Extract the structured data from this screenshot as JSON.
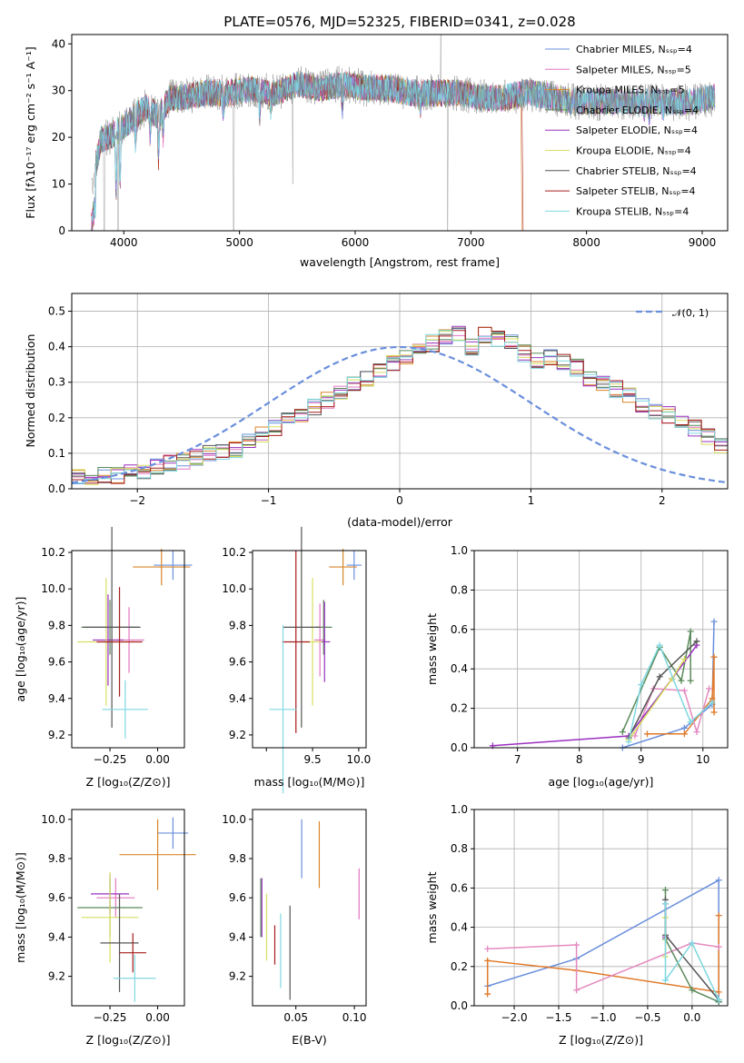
{
  "title": "PLATE=0576, MJD=52325, FIBERID=0341, z=0.028",
  "colors": {
    "Chabrier MILES": "#6a8fdc",
    "Salpeter MILES": "#e377c2",
    "Kroupa MILES": "#d8862a",
    "Chabrier ELODIE": "#5a8a5a",
    "Salpeter ELODIE": "#9b30c0",
    "Kroupa ELODIE": "#d8df60",
    "Chabrier STELIB": "#555555",
    "Salpeter STELIB": "#a61c1c",
    "Kroupa STELIB": "#7fd8e0",
    "orange": "#e07a2a",
    "pink": "#e48ac0",
    "normal": "#6a8fdc"
  },
  "spectrum": {
    "xlabel": "wavelength [Angstrom, rest frame]",
    "ylabel": "Flux [fλ10⁻¹⁷ erg cm⁻² s⁻¹ A⁻¹]",
    "xticks": [
      "4000",
      "5000",
      "6000",
      "7000",
      "8000",
      "9000"
    ],
    "yticks": [
      "0",
      "10",
      "20",
      "30",
      "40"
    ],
    "legend": [
      {
        "label": "Chabrier MILES, Nₛₛₚ=4",
        "key": "Chabrier MILES"
      },
      {
        "label": "Salpeter MILES, Nₛₛₚ=5",
        "key": "Salpeter MILES"
      },
      {
        "label": "Kroupa MILES, Nₛₛₚ=5",
        "key": "Kroupa MILES"
      },
      {
        "label": "Chabrier ELODIE, Nₛₛₚ=4",
        "key": "Chabrier ELODIE"
      },
      {
        "label": "Salpeter ELODIE, Nₛₛₚ=4",
        "key": "Salpeter ELODIE"
      },
      {
        "label": "Kroupa ELODIE, Nₛₛₚ=4",
        "key": "Kroupa ELODIE"
      },
      {
        "label": "Chabrier STELIB, Nₛₛₚ=4",
        "key": "Chabrier STELIB"
      },
      {
        "label": "Salpeter STELIB, Nₛₛₚ=4",
        "key": "Salpeter STELIB"
      },
      {
        "label": "Kroupa STELIB, Nₛₛₚ=4",
        "key": "Kroupa STELIB"
      }
    ]
  },
  "residuals": {
    "xlabel": "(data-model)/error",
    "ylabel": "Normed distribution",
    "legend": "𝒩(0, 1)",
    "xticks": [
      "−2",
      "−1",
      "0",
      "1",
      "2"
    ],
    "yticks": [
      "0.0",
      "0.1",
      "0.2",
      "0.3",
      "0.4",
      "0.5"
    ]
  },
  "p_age_Z": {
    "xlabel": "Z [log₁₀(Z/Z⊙)]",
    "ylabel": "age  [log₁₀(age/yr)]",
    "xticks": [
      "−0.25",
      "0.00"
    ],
    "yticks": [
      "9.2",
      "9.4",
      "9.6",
      "9.8",
      "10.0",
      "10.2"
    ]
  },
  "p_age_mass": {
    "xlabel": "mass [log₁₀(M/M⊙)]",
    "xticks": [
      "9.5",
      "10.0"
    ],
    "xticks_minor": [
      "9.0"
    ],
    "yticks": [
      "9.2",
      "9.4",
      "9.6",
      "9.8",
      "10.0",
      "10.2"
    ]
  },
  "p_mw_age": {
    "xlabel": "age  [log₁₀(age/yr)]",
    "ylabel": "mass weight",
    "xticks": [
      "7",
      "8",
      "9",
      "10"
    ],
    "yticks": [
      "0.0",
      "0.2",
      "0.4",
      "0.6",
      "0.8",
      "1.0"
    ]
  },
  "p_mass_Z": {
    "xlabel": "Z [log₁₀(Z/Z⊙)]",
    "ylabel": "mass [log₁₀(M/M⊙)]",
    "xticks": [
      "−0.25",
      "0.00"
    ],
    "yticks": [
      "9.2",
      "9.4",
      "9.6",
      "9.8",
      "10.0"
    ]
  },
  "p_mass_ebv": {
    "xlabel": "E(B-V)",
    "xticks": [
      "0.05",
      "0.10"
    ],
    "yticks": [
      "9.2",
      "9.4",
      "9.6",
      "9.8",
      "10.0"
    ]
  },
  "p_mw_Z": {
    "xlabel": "Z [log₁₀(Z/Z⊙)]",
    "ylabel": "mass weight",
    "xticks": [
      "−2.0",
      "−1.5",
      "−1.0",
      "−0.5",
      "0.0"
    ],
    "yticks": [
      "0.0",
      "0.2",
      "0.4",
      "0.6",
      "0.8",
      "1.0"
    ]
  },
  "chart_data": [
    {
      "type": "line",
      "title": "PLATE=0576, MJD=52325, FIBERID=0341, z=0.028",
      "xlabel": "wavelength [Angstrom, rest frame]",
      "ylabel": "Flux [fλ10⁻¹⁷ erg cm⁻² s⁻¹ A⁻¹]",
      "xlim": [
        3550,
        9220
      ],
      "ylim": [
        0,
        42
      ],
      "envelope_x": [
        3720,
        3800,
        3900,
        4000,
        4100,
        4200,
        4300,
        4400,
        4500,
        4700,
        4900,
        5100,
        5300,
        5500,
        5700,
        5900,
        6100,
        6300,
        6500,
        6700,
        6900,
        7100,
        7300,
        7500,
        7700,
        7900,
        8100,
        8300,
        8500,
        8700,
        8900,
        9100
      ],
      "envelope_y": [
        16,
        26,
        27,
        29,
        31,
        33,
        31,
        35,
        35,
        36,
        36,
        37,
        36,
        38,
        37,
        38,
        37,
        37,
        36,
        36,
        36,
        35,
        35,
        36,
        35,
        34,
        34,
        34,
        34,
        34,
        34,
        35
      ],
      "series": [
        {
          "name": "Chabrier MILES, Nₛₛₚ=4"
        },
        {
          "name": "Salpeter MILES, Nₛₛₚ=5"
        },
        {
          "name": "Kroupa MILES, Nₛₛₚ=5"
        },
        {
          "name": "Chabrier ELODIE, Nₛₛₚ=4"
        },
        {
          "name": "Salpeter ELODIE, Nₛₛₚ=4"
        },
        {
          "name": "Kroupa ELODIE, Nₛₛₚ=4"
        },
        {
          "name": "Chabrier STELIB, Nₛₛₚ=4"
        },
        {
          "name": "Salpeter STELIB, Nₛₛₚ=4"
        },
        {
          "name": "Kroupa STELIB, Nₛₛₚ=4"
        }
      ]
    },
    {
      "type": "area",
      "xlabel": "(data-model)/error",
      "ylabel": "Normed distribution",
      "xlim": [
        -2.5,
        2.5
      ],
      "ylim": [
        0,
        0.55
      ],
      "grid": true,
      "bin_edges_start": -2.5,
      "bin_width": 0.1,
      "hist": [
        0.03,
        0.03,
        0.04,
        0.04,
        0.05,
        0.05,
        0.06,
        0.07,
        0.08,
        0.09,
        0.1,
        0.1,
        0.11,
        0.13,
        0.15,
        0.17,
        0.19,
        0.21,
        0.23,
        0.25,
        0.27,
        0.29,
        0.31,
        0.33,
        0.35,
        0.37,
        0.39,
        0.41,
        0.43,
        0.44,
        0.4,
        0.43,
        0.42,
        0.41,
        0.38,
        0.36,
        0.37,
        0.36,
        0.34,
        0.31,
        0.3,
        0.28,
        0.26,
        0.24,
        0.22,
        0.21,
        0.19,
        0.17,
        0.15,
        0.12,
        0.11,
        0.1,
        0.09,
        0.08,
        0.07,
        0.06,
        0.05,
        0.05,
        0.04,
        0.04
      ],
      "normal_label": "𝒩(0, 1)"
    },
    {
      "type": "scatter",
      "xlabel": "Z [log₁₀(Z/Z⊙)]",
      "ylabel": "age  [log₁₀(age/yr)]",
      "xlim": [
        -0.45,
        0.14
      ],
      "ylim": [
        9.13,
        10.21
      ],
      "points": [
        {
          "x": 0.08,
          "y": 10.13,
          "xerr": 0.1,
          "yerr": 0.08,
          "c": "Chabrier MILES"
        },
        {
          "x": 0.02,
          "y": 10.12,
          "xerr": 0.15,
          "yerr": 0.1,
          "c": "Kroupa MILES"
        },
        {
          "x": -0.15,
          "y": 9.72,
          "xerr": 0.08,
          "yerr": 0.18,
          "c": "Salpeter MILES"
        },
        {
          "x": -0.25,
          "y": 9.79,
          "xerr": 0.15,
          "yerr": 0.15,
          "c": "Chabrier ELODIE"
        },
        {
          "x": -0.26,
          "y": 9.72,
          "xerr": 0.08,
          "yerr": 0.25,
          "c": "Salpeter ELODIE"
        },
        {
          "x": -0.27,
          "y": 9.71,
          "xerr": 0.15,
          "yerr": 0.35,
          "c": "Kroupa ELODIE"
        },
        {
          "x": -0.24,
          "y": 9.79,
          "xerr": 0.15,
          "yerr": 0.55,
          "c": "Chabrier STELIB"
        },
        {
          "x": -0.2,
          "y": 9.71,
          "xerr": 0.12,
          "yerr": 0.3,
          "c": "Salpeter STELIB"
        },
        {
          "x": -0.17,
          "y": 9.34,
          "xerr": 0.12,
          "yerr": 0.16,
          "c": "Kroupa STELIB"
        }
      ]
    },
    {
      "type": "scatter",
      "xlabel": "mass [log₁₀(M/M⊙)]",
      "xlim": [
        8.85,
        10.08
      ],
      "ylim": [
        9.13,
        10.21
      ],
      "points": [
        {
          "x": 9.95,
          "y": 10.13,
          "xerr": 0.08,
          "yerr": 0.08,
          "c": "Chabrier MILES"
        },
        {
          "x": 9.83,
          "y": 10.12,
          "xerr": 0.15,
          "yerr": 0.1,
          "c": "Kroupa MILES"
        },
        {
          "x": 9.58,
          "y": 9.72,
          "xerr": 0.06,
          "yerr": 0.2,
          "c": "Salpeter MILES"
        },
        {
          "x": 9.62,
          "y": 9.79,
          "xerr": 0.09,
          "yerr": 0.15,
          "c": "Chabrier ELODIE"
        },
        {
          "x": 9.63,
          "y": 9.71,
          "xerr": 0.06,
          "yerr": 0.22,
          "c": "Salpeter ELODIE"
        },
        {
          "x": 9.5,
          "y": 9.71,
          "xerr": 0.1,
          "yerr": 0.35,
          "c": "Kroupa ELODIE"
        },
        {
          "x": 9.38,
          "y": 9.79,
          "xerr": 0.2,
          "yerr": 0.55,
          "c": "Chabrier STELIB"
        },
        {
          "x": 9.32,
          "y": 9.71,
          "xerr": 0.15,
          "yerr": 0.5,
          "c": "Salpeter STELIB"
        },
        {
          "x": 9.18,
          "y": 9.34,
          "xerr": 0.15,
          "yerr": 0.46,
          "c": "Kroupa STELIB"
        }
      ]
    },
    {
      "type": "line",
      "xlabel": "age  [log₁₀(age/yr)]",
      "ylabel": "mass weight",
      "xlim": [
        6.3,
        10.4
      ],
      "ylim": [
        0,
        1
      ],
      "grid": true,
      "series": [
        {
          "c": "Chabrier MILES",
          "x": [
            8.7,
            9.7,
            10.15,
            10.18
          ],
          "y": [
            0.0,
            0.1,
            0.22,
            0.64
          ]
        },
        {
          "c": "orange",
          "x": [
            9.1,
            9.7,
            10.15,
            10.18,
            10.18
          ],
          "y": [
            0.07,
            0.07,
            0.25,
            0.46,
            0.18
          ]
        },
        {
          "c": "pink",
          "x": [
            8.9,
            9.2,
            9.7,
            9.9,
            10.1
          ],
          "y": [
            0.06,
            0.3,
            0.29,
            0.08,
            0.3
          ]
        },
        {
          "c": "Chabrier ELODIE",
          "x": [
            8.7,
            9.3,
            9.65,
            9.8,
            9.8
          ],
          "y": [
            0.08,
            0.51,
            0.34,
            0.59,
            0.34
          ]
        },
        {
          "c": "Salpeter ELODIE",
          "x": [
            6.6,
            8.8,
            9.5,
            9.9
          ],
          "y": [
            0.01,
            0.06,
            0.35,
            0.52
          ]
        },
        {
          "c": "Kroupa ELODIE",
          "x": [
            8.8,
            9.5,
            9.7
          ],
          "y": [
            0.04,
            0.35,
            0.45
          ]
        },
        {
          "c": "Chabrier STELIB",
          "x": [
            8.8,
            9.3,
            9.9
          ],
          "y": [
            0.05,
            0.36,
            0.54
          ]
        },
        {
          "c": "Kroupa STELIB",
          "x": [
            8.8,
            9.0,
            9.3,
            9.8,
            10.15
          ],
          "y": [
            0.03,
            0.32,
            0.52,
            0.13,
            0.23
          ]
        }
      ]
    },
    {
      "type": "scatter",
      "xlabel": "Z [log₁₀(Z/Z⊙)]",
      "ylabel": "mass [log₁₀(M/M⊙)]",
      "xlim": [
        -0.45,
        0.14
      ],
      "ylim": [
        9.05,
        10.05
      ],
      "points": [
        {
          "x": 0.08,
          "y": 9.93,
          "xerr": 0.08,
          "yerr": 0.08,
          "c": "Chabrier MILES"
        },
        {
          "x": 0.0,
          "y": 9.82,
          "xerr": 0.2,
          "yerr": 0.18,
          "c": "Kroupa MILES"
        },
        {
          "x": -0.22,
          "y": 9.6,
          "xerr": 0.1,
          "yerr": 0.1,
          "c": "Salpeter MILES"
        },
        {
          "x": -0.25,
          "y": 9.55,
          "xerr": 0.17,
          "yerr": 0.15,
          "c": "Chabrier ELODIE"
        },
        {
          "x": -0.25,
          "y": 9.62,
          "xerr": 0.1,
          "yerr": 0.1,
          "c": "Salpeter ELODIE"
        },
        {
          "x": -0.25,
          "y": 9.5,
          "xerr": 0.15,
          "yerr": 0.23,
          "c": "Kroupa ELODIE"
        },
        {
          "x": -0.2,
          "y": 9.37,
          "xerr": 0.1,
          "yerr": 0.25,
          "c": "Chabrier STELIB"
        },
        {
          "x": -0.13,
          "y": 9.32,
          "xerr": 0.07,
          "yerr": 0.1,
          "c": "Salpeter STELIB"
        },
        {
          "x": -0.12,
          "y": 9.19,
          "xerr": 0.11,
          "yerr": 0.12,
          "c": "Kroupa STELIB"
        }
      ]
    },
    {
      "type": "scatter",
      "xlabel": "E(B-V)",
      "xlim": [
        0.013,
        0.11
      ],
      "ylim": [
        9.05,
        10.05
      ],
      "points": [
        {
          "x": 0.055,
          "y": 9.85,
          "yerr": 0.15,
          "c": "Chabrier MILES"
        },
        {
          "x": 0.07,
          "y": 9.82,
          "yerr": 0.17,
          "c": "Kroupa MILES"
        },
        {
          "x": 0.104,
          "y": 9.62,
          "yerr": 0.13,
          "c": "Salpeter MILES"
        },
        {
          "x": 0.02,
          "y": 9.55,
          "yerr": 0.15,
          "c": "Chabrier ELODIE"
        },
        {
          "x": 0.021,
          "y": 9.55,
          "yerr": 0.15,
          "c": "Salpeter ELODIE"
        },
        {
          "x": 0.025,
          "y": 9.45,
          "yerr": 0.17,
          "c": "Kroupa ELODIE"
        },
        {
          "x": 0.045,
          "y": 9.32,
          "yerr": 0.24,
          "c": "Chabrier STELIB"
        },
        {
          "x": 0.032,
          "y": 9.36,
          "yerr": 0.1,
          "c": "Salpeter STELIB"
        },
        {
          "x": 0.037,
          "y": 9.33,
          "yerr": 0.19,
          "c": "Kroupa STELIB"
        }
      ]
    },
    {
      "type": "line",
      "xlabel": "Z [log₁₀(Z/Z⊙)]",
      "ylabel": "mass weight",
      "xlim": [
        -2.45,
        0.4
      ],
      "ylim": [
        0,
        1
      ],
      "grid": true,
      "series": [
        {
          "c": "Chabrier MILES",
          "x": [
            -2.3,
            -1.3,
            0.3,
            0.3
          ],
          "y": [
            0.1,
            0.24,
            0.64,
            0.02
          ]
        },
        {
          "c": "orange",
          "x": [
            -2.3,
            -2.3,
            -1.3,
            0.3,
            0.3
          ],
          "y": [
            0.06,
            0.23,
            0.18,
            0.07,
            0.46
          ]
        },
        {
          "c": "pink",
          "x": [
            -2.3,
            -1.3,
            -1.3,
            0.0,
            0.3
          ],
          "y": [
            0.29,
            0.31,
            0.08,
            0.32,
            0.3
          ]
        },
        {
          "c": "Chabrier ELODIE",
          "x": [
            -0.3,
            -0.3,
            0.0,
            0.3
          ],
          "y": [
            0.59,
            0.34,
            0.08,
            0.02
          ]
        },
        {
          "c": "Salpeter ELODIE",
          "x": [
            -0.3,
            -0.3
          ],
          "y": [
            0.35,
            0.52
          ]
        },
        {
          "c": "Kroupa ELODIE",
          "x": [
            -0.3,
            -0.3
          ],
          "y": [
            0.45,
            0.25
          ]
        },
        {
          "c": "Chabrier STELIB",
          "x": [
            -0.3,
            -0.3,
            0.3
          ],
          "y": [
            0.54,
            0.36,
            0.03
          ]
        },
        {
          "c": "Kroupa STELIB",
          "x": [
            -0.3,
            -0.3,
            0.0,
            0.3
          ],
          "y": [
            0.52,
            0.13,
            0.32,
            0.03
          ]
        }
      ]
    }
  ]
}
